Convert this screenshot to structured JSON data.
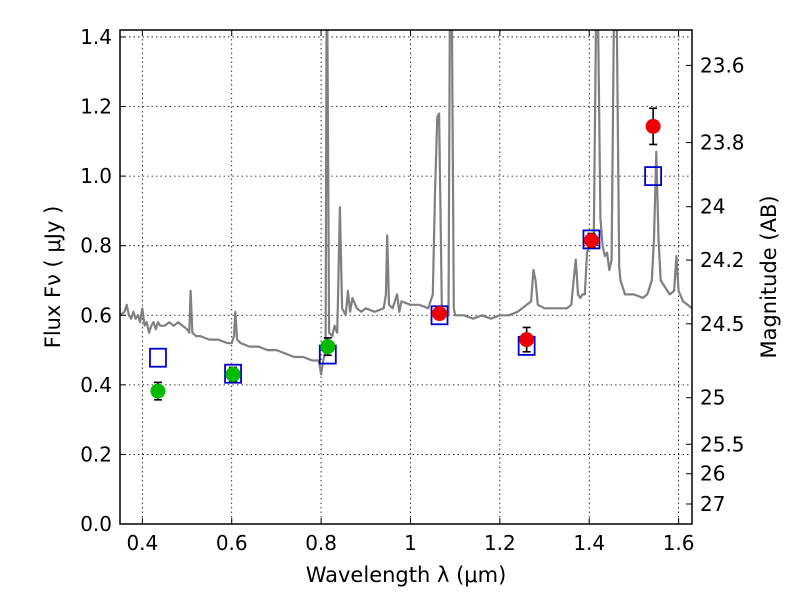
{
  "chart_data": {
    "type": "scatter",
    "xlabel": "Wavelength  λ (μm)",
    "ylabel": "Flux  Fν  ( μJy )",
    "ylabel_right": "Magnitude (AB)",
    "xlim": [
      0.35,
      1.63
    ],
    "ylim": [
      0.0,
      1.42
    ],
    "grid": true,
    "x_ticks": [
      {
        "value": 0.4,
        "label": "0.4"
      },
      {
        "value": 0.6,
        "label": "0.6"
      },
      {
        "value": 0.8,
        "label": "0.8"
      },
      {
        "value": 1.0,
        "label": "1"
      },
      {
        "value": 1.2,
        "label": "1.2"
      },
      {
        "value": 1.4,
        "label": "1.4"
      },
      {
        "value": 1.6,
        "label": "1.6"
      }
    ],
    "y_ticks": [
      {
        "value": 0.0,
        "label": "0.0"
      },
      {
        "value": 0.2,
        "label": "0.2"
      },
      {
        "value": 0.4,
        "label": "0.4"
      },
      {
        "value": 0.6,
        "label": "0.6"
      },
      {
        "value": 0.8,
        "label": "0.8"
      },
      {
        "value": 1.0,
        "label": "1.0"
      },
      {
        "value": 1.2,
        "label": "1.2"
      },
      {
        "value": 1.4,
        "label": "1.4"
      }
    ],
    "mag_ticks": [
      {
        "mag": 23.6,
        "label": "23.6"
      },
      {
        "mag": 23.8,
        "label": "23.8"
      },
      {
        "mag": 24.0,
        "label": "24"
      },
      {
        "mag": 24.2,
        "label": "24.2"
      },
      {
        "mag": 24.5,
        "label": "24.5"
      },
      {
        "mag": 25.0,
        "label": "25"
      },
      {
        "mag": 25.5,
        "label": "25.5"
      },
      {
        "mag": 26.0,
        "label": "26"
      },
      {
        "mag": 27.0,
        "label": "27"
      }
    ],
    "series": [
      {
        "kind": "line",
        "color": "#808080",
        "points": [
          [
            0.35,
            0.6
          ],
          [
            0.36,
            0.61
          ],
          [
            0.365,
            0.63
          ],
          [
            0.37,
            0.6
          ],
          [
            0.375,
            0.59
          ],
          [
            0.38,
            0.61
          ],
          [
            0.385,
            0.59
          ],
          [
            0.39,
            0.6
          ],
          [
            0.395,
            0.58
          ],
          [
            0.4,
            0.62
          ],
          [
            0.405,
            0.57
          ],
          [
            0.41,
            0.58
          ],
          [
            0.415,
            0.55
          ],
          [
            0.42,
            0.57
          ],
          [
            0.425,
            0.58
          ],
          [
            0.43,
            0.56
          ],
          [
            0.435,
            0.58
          ],
          [
            0.44,
            0.57
          ],
          [
            0.45,
            0.57
          ],
          [
            0.46,
            0.58
          ],
          [
            0.47,
            0.57
          ],
          [
            0.48,
            0.58
          ],
          [
            0.49,
            0.57
          ],
          [
            0.5,
            0.56
          ],
          [
            0.505,
            0.55
          ],
          [
            0.508,
            0.67
          ],
          [
            0.512,
            0.55
          ],
          [
            0.52,
            0.54
          ],
          [
            0.53,
            0.54
          ],
          [
            0.55,
            0.53
          ],
          [
            0.57,
            0.53
          ],
          [
            0.59,
            0.52
          ],
          [
            0.6,
            0.52
          ],
          [
            0.605,
            0.54
          ],
          [
            0.608,
            0.61
          ],
          [
            0.612,
            0.53
          ],
          [
            0.62,
            0.52
          ],
          [
            0.64,
            0.51
          ],
          [
            0.66,
            0.51
          ],
          [
            0.68,
            0.5
          ],
          [
            0.7,
            0.5
          ],
          [
            0.72,
            0.49
          ],
          [
            0.74,
            0.48
          ],
          [
            0.76,
            0.48
          ],
          [
            0.78,
            0.47
          ],
          [
            0.795,
            0.47
          ],
          [
            0.8,
            0.43
          ],
          [
            0.805,
            0.47
          ],
          [
            0.81,
            0.5
          ],
          [
            0.812,
            1.42
          ],
          [
            0.814,
            1.42
          ],
          [
            0.818,
            0.55
          ],
          [
            0.825,
            0.54
          ],
          [
            0.83,
            0.57
          ],
          [
            0.836,
            0.55
          ],
          [
            0.838,
            0.66
          ],
          [
            0.842,
            0.91
          ],
          [
            0.847,
            0.62
          ],
          [
            0.855,
            0.6
          ],
          [
            0.86,
            0.67
          ],
          [
            0.865,
            0.61
          ],
          [
            0.87,
            0.65
          ],
          [
            0.88,
            0.62
          ],
          [
            0.89,
            0.61
          ],
          [
            0.9,
            0.62
          ],
          [
            0.92,
            0.61
          ],
          [
            0.94,
            0.62
          ],
          [
            0.945,
            0.66
          ],
          [
            0.948,
            0.83
          ],
          [
            0.952,
            0.63
          ],
          [
            0.96,
            0.62
          ],
          [
            0.97,
            0.66
          ],
          [
            0.975,
            0.61
          ],
          [
            0.98,
            0.64
          ],
          [
            1.0,
            0.63
          ],
          [
            1.02,
            0.63
          ],
          [
            1.04,
            0.62
          ],
          [
            1.05,
            0.66
          ],
          [
            1.055,
            0.95
          ],
          [
            1.06,
            1.17
          ],
          [
            1.064,
            1.18
          ],
          [
            1.07,
            0.63
          ],
          [
            1.075,
            0.61
          ],
          [
            1.08,
            0.6
          ],
          [
            1.085,
            0.6
          ],
          [
            1.088,
            1.42
          ],
          [
            1.093,
            1.42
          ],
          [
            1.097,
            0.62
          ],
          [
            1.1,
            0.6
          ],
          [
            1.12,
            0.6
          ],
          [
            1.14,
            0.59
          ],
          [
            1.16,
            0.6
          ],
          [
            1.18,
            0.59
          ],
          [
            1.2,
            0.6
          ],
          [
            1.22,
            0.6
          ],
          [
            1.24,
            0.61
          ],
          [
            1.25,
            0.62
          ],
          [
            1.26,
            0.63
          ],
          [
            1.27,
            0.64
          ],
          [
            1.275,
            0.73
          ],
          [
            1.28,
            0.7
          ],
          [
            1.285,
            0.63
          ],
          [
            1.3,
            0.62
          ],
          [
            1.33,
            0.62
          ],
          [
            1.35,
            0.62
          ],
          [
            1.36,
            0.63
          ],
          [
            1.365,
            0.7
          ],
          [
            1.37,
            0.76
          ],
          [
            1.375,
            0.66
          ],
          [
            1.38,
            0.65
          ],
          [
            1.385,
            0.66
          ],
          [
            1.39,
            0.66
          ],
          [
            1.395,
            0.78
          ],
          [
            1.4,
            0.8
          ],
          [
            1.405,
            0.82
          ],
          [
            1.41,
            0.8
          ],
          [
            1.415,
            1.42
          ],
          [
            1.42,
            1.42
          ],
          [
            1.425,
            0.88
          ],
          [
            1.43,
            0.8
          ],
          [
            1.435,
            0.77
          ],
          [
            1.44,
            0.78
          ],
          [
            1.445,
            0.73
          ],
          [
            1.45,
            0.76
          ],
          [
            1.455,
            1.42
          ],
          [
            1.462,
            1.42
          ],
          [
            1.467,
            0.74
          ],
          [
            1.47,
            0.7
          ],
          [
            1.48,
            0.66
          ],
          [
            1.5,
            0.66
          ],
          [
            1.52,
            0.65
          ],
          [
            1.53,
            0.66
          ],
          [
            1.54,
            0.7
          ],
          [
            1.545,
            0.82
          ],
          [
            1.55,
            1.07
          ],
          [
            1.555,
            0.82
          ],
          [
            1.56,
            0.7
          ],
          [
            1.58,
            0.66
          ],
          [
            1.59,
            0.67
          ],
          [
            1.595,
            0.77
          ],
          [
            1.6,
            0.67
          ],
          [
            1.61,
            0.64
          ],
          [
            1.62,
            0.63
          ],
          [
            1.63,
            0.62
          ]
        ]
      },
      {
        "kind": "scatter",
        "marker": "square-open",
        "color": "#0000cc",
        "x": [
          0.435,
          0.603,
          0.815,
          1.065,
          1.26,
          1.405,
          1.543
        ],
        "y": [
          0.478,
          0.432,
          0.487,
          0.6,
          0.512,
          0.818,
          1.0
        ]
      },
      {
        "kind": "scatter",
        "marker": "circle",
        "color": "#00bb00",
        "x": [
          0.435,
          0.603,
          0.815
        ],
        "y": [
          0.382,
          0.43,
          0.51
        ],
        "err": [
          0.025,
          0.02,
          0.025
        ]
      },
      {
        "kind": "scatter",
        "marker": "circle",
        "color": "#ee0000",
        "x": [
          1.065,
          1.26,
          1.405,
          1.543
        ],
        "y": [
          0.605,
          0.53,
          0.815,
          1.143
        ],
        "err": [
          0.015,
          0.035,
          0.02,
          0.052
        ]
      }
    ]
  }
}
